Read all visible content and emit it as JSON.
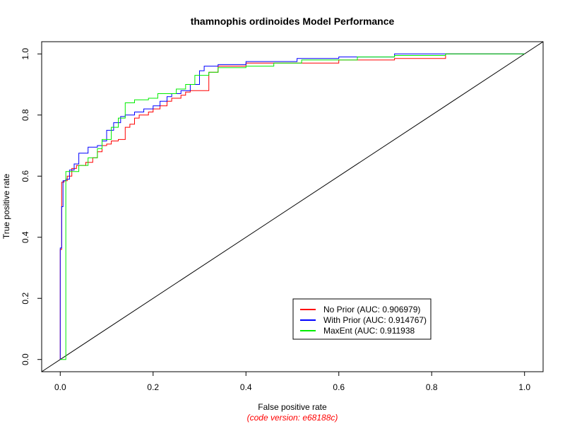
{
  "chart_data": {
    "type": "line",
    "title": "thamnophis ordinoides Model Performance",
    "xlabel": "False positive rate",
    "ylabel": "True positive rate",
    "caption": "(code version: e68188c)",
    "xlim": [
      -0.04,
      1.04
    ],
    "ylim": [
      -0.04,
      1.04
    ],
    "xticks": [
      0.0,
      0.2,
      0.4,
      0.6,
      0.8,
      1.0
    ],
    "yticks": [
      0.0,
      0.2,
      0.4,
      0.6,
      0.8,
      1.0
    ],
    "xtick_labels": [
      "0.0",
      "0.2",
      "0.4",
      "0.6",
      "0.8",
      "1.0"
    ],
    "ytick_labels": [
      "0.0",
      "0.2",
      "0.4",
      "0.6",
      "0.8",
      "1.0"
    ],
    "grid": false,
    "legend_position": "bottom-right",
    "reference_line": {
      "x": [
        0,
        1
      ],
      "y": [
        0,
        1
      ],
      "color": "#000000"
    },
    "series": [
      {
        "name": "No Prior (AUC: 0.906979)",
        "color": "#ff0000",
        "x": [
          0.0,
          0.0,
          0.003,
          0.003,
          0.008,
          0.008,
          0.015,
          0.015,
          0.025,
          0.025,
          0.035,
          0.035,
          0.055,
          0.055,
          0.07,
          0.07,
          0.08,
          0.08,
          0.09,
          0.09,
          0.1,
          0.1,
          0.11,
          0.11,
          0.125,
          0.125,
          0.14,
          0.14,
          0.15,
          0.15,
          0.16,
          0.16,
          0.17,
          0.17,
          0.19,
          0.19,
          0.2,
          0.2,
          0.215,
          0.215,
          0.23,
          0.23,
          0.24,
          0.24,
          0.26,
          0.26,
          0.27,
          0.27,
          0.28,
          0.28,
          0.32,
          0.32,
          0.34,
          0.34,
          0.4,
          0.4,
          0.6,
          0.6,
          0.72,
          0.72,
          0.83,
          0.83,
          1.0
        ],
        "y": [
          0.0,
          0.36,
          0.36,
          0.58,
          0.58,
          0.585,
          0.585,
          0.6,
          0.6,
          0.625,
          0.625,
          0.635,
          0.635,
          0.645,
          0.645,
          0.66,
          0.66,
          0.68,
          0.68,
          0.7,
          0.7,
          0.705,
          0.705,
          0.715,
          0.715,
          0.72,
          0.72,
          0.76,
          0.76,
          0.77,
          0.77,
          0.79,
          0.79,
          0.8,
          0.8,
          0.81,
          0.81,
          0.82,
          0.82,
          0.83,
          0.83,
          0.845,
          0.845,
          0.855,
          0.855,
          0.865,
          0.865,
          0.875,
          0.875,
          0.88,
          0.88,
          0.94,
          0.94,
          0.96,
          0.96,
          0.97,
          0.97,
          0.98,
          0.98,
          0.985,
          0.985,
          1.0,
          1.0
        ]
      },
      {
        "name": "With Prior (AUC: 0.914767)",
        "color": "#0000ff",
        "x": [
          0.0,
          0.0,
          0.003,
          0.003,
          0.006,
          0.006,
          0.012,
          0.012,
          0.02,
          0.02,
          0.03,
          0.03,
          0.04,
          0.04,
          0.06,
          0.06,
          0.08,
          0.08,
          0.09,
          0.09,
          0.1,
          0.1,
          0.115,
          0.115,
          0.13,
          0.13,
          0.14,
          0.14,
          0.16,
          0.16,
          0.18,
          0.18,
          0.2,
          0.2,
          0.215,
          0.215,
          0.23,
          0.23,
          0.24,
          0.24,
          0.26,
          0.26,
          0.28,
          0.28,
          0.3,
          0.3,
          0.31,
          0.31,
          0.34,
          0.34,
          0.4,
          0.4,
          0.51,
          0.51,
          0.6,
          0.6,
          0.72,
          0.72,
          1.0
        ],
        "y": [
          0.0,
          0.365,
          0.365,
          0.5,
          0.5,
          0.585,
          0.585,
          0.59,
          0.59,
          0.62,
          0.62,
          0.64,
          0.64,
          0.675,
          0.675,
          0.695,
          0.695,
          0.7,
          0.7,
          0.715,
          0.715,
          0.75,
          0.75,
          0.775,
          0.775,
          0.795,
          0.795,
          0.8,
          0.8,
          0.81,
          0.81,
          0.82,
          0.82,
          0.83,
          0.83,
          0.845,
          0.845,
          0.86,
          0.86,
          0.87,
          0.87,
          0.88,
          0.88,
          0.9,
          0.9,
          0.945,
          0.945,
          0.96,
          0.96,
          0.965,
          0.965,
          0.975,
          0.975,
          0.985,
          0.985,
          0.99,
          0.99,
          1.0,
          1.0
        ]
      },
      {
        "name": "MaxEnt (AUC: 0.911938",
        "color": "#00ee00",
        "x": [
          0.0,
          0.0,
          0.012,
          0.012,
          0.04,
          0.04,
          0.06,
          0.06,
          0.08,
          0.08,
          0.09,
          0.09,
          0.11,
          0.11,
          0.125,
          0.125,
          0.14,
          0.14,
          0.16,
          0.16,
          0.19,
          0.19,
          0.21,
          0.21,
          0.25,
          0.25,
          0.27,
          0.27,
          0.29,
          0.29,
          0.32,
          0.32,
          0.34,
          0.34,
          0.4,
          0.4,
          0.46,
          0.46,
          0.52,
          0.52,
          0.64,
          0.64,
          0.72,
          0.72,
          0.83,
          0.83,
          1.0
        ],
        "y": [
          0.0,
          0.0,
          0.0,
          0.615,
          0.615,
          0.635,
          0.635,
          0.66,
          0.66,
          0.69,
          0.69,
          0.72,
          0.72,
          0.76,
          0.76,
          0.79,
          0.79,
          0.84,
          0.84,
          0.85,
          0.85,
          0.855,
          0.855,
          0.87,
          0.87,
          0.885,
          0.885,
          0.9,
          0.9,
          0.93,
          0.93,
          0.94,
          0.94,
          0.955,
          0.955,
          0.96,
          0.96,
          0.97,
          0.97,
          0.98,
          0.98,
          0.99,
          0.99,
          0.995,
          0.995,
          1.0,
          1.0
        ]
      }
    ]
  }
}
